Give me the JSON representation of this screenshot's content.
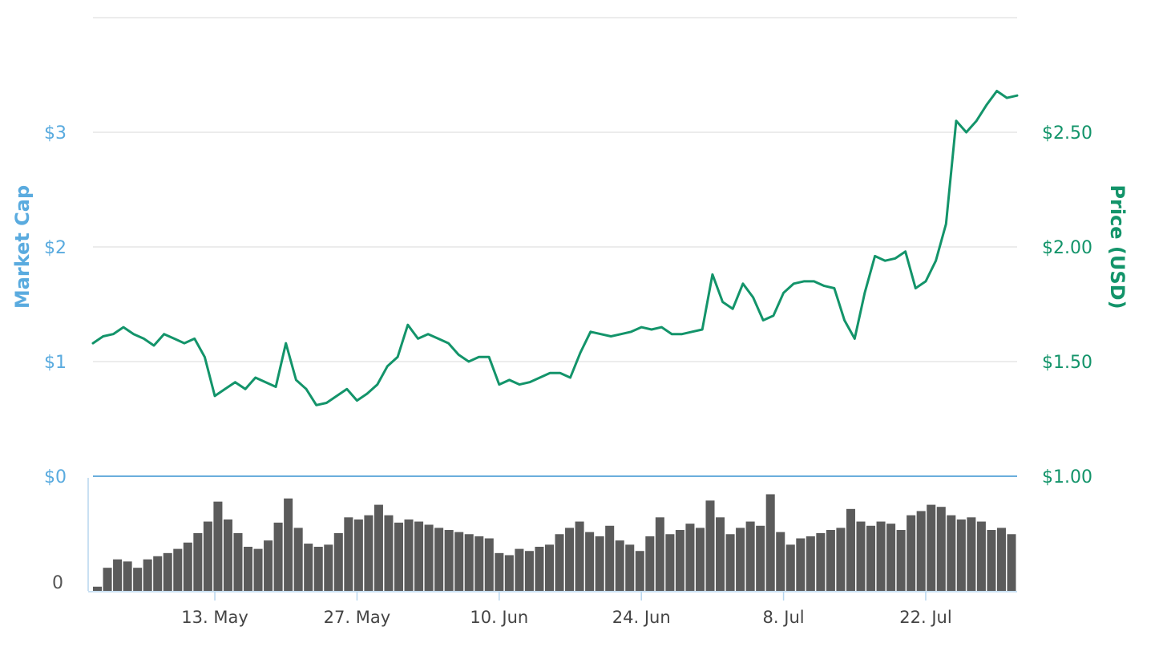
{
  "chart_data": [
    {
      "type": "line",
      "panel": "price",
      "title": "",
      "xlabel": "",
      "y_left_label": "Market Cap",
      "y_right_label": "Price (USD)",
      "y_left_ticks": [
        "$0",
        "$1",
        "$2",
        "$3"
      ],
      "y_right_ticks": [
        "$1.00",
        "$1.50",
        "$2.00",
        "$2.50"
      ],
      "ylim_right": [
        1.0,
        3.0
      ],
      "x_tick_labels": [
        "13. May",
        "27. May",
        "10. Jun",
        "24. Jun",
        "8. Jul",
        "22. Jul"
      ],
      "x_tick_dates": [
        "2019-05-13",
        "2019-05-27",
        "2019-06-10",
        "2019-06-24",
        "2019-07-08",
        "2019-07-22"
      ],
      "xlim": [
        "2019-05-01",
        "2019-07-31"
      ],
      "grid": true,
      "colors": {
        "price_line": "#13946a",
        "left_axis": "#5aabdf",
        "right_axis": "#13946a",
        "grid": "#e6e6e6",
        "axis_line": "#6aaedc"
      },
      "series": [
        {
          "name": "Price (USD)",
          "points": [
            [
              "2019-05-01",
              1.58
            ],
            [
              "2019-05-02",
              1.61
            ],
            [
              "2019-05-03",
              1.62
            ],
            [
              "2019-05-04",
              1.65
            ],
            [
              "2019-05-05",
              1.62
            ],
            [
              "2019-05-06",
              1.6
            ],
            [
              "2019-05-07",
              1.57
            ],
            [
              "2019-05-08",
              1.62
            ],
            [
              "2019-05-09",
              1.6
            ],
            [
              "2019-05-10",
              1.58
            ],
            [
              "2019-05-11",
              1.6
            ],
            [
              "2019-05-12",
              1.52
            ],
            [
              "2019-05-13",
              1.35
            ],
            [
              "2019-05-14",
              1.38
            ],
            [
              "2019-05-15",
              1.41
            ],
            [
              "2019-05-16",
              1.38
            ],
            [
              "2019-05-17",
              1.43
            ],
            [
              "2019-05-18",
              1.41
            ],
            [
              "2019-05-19",
              1.39
            ],
            [
              "2019-05-20",
              1.58
            ],
            [
              "2019-05-21",
              1.42
            ],
            [
              "2019-05-22",
              1.38
            ],
            [
              "2019-05-23",
              1.31
            ],
            [
              "2019-05-24",
              1.32
            ],
            [
              "2019-05-25",
              1.35
            ],
            [
              "2019-05-26",
              1.38
            ],
            [
              "2019-05-27",
              1.33
            ],
            [
              "2019-05-28",
              1.36
            ],
            [
              "2019-05-29",
              1.4
            ],
            [
              "2019-05-30",
              1.48
            ],
            [
              "2019-05-31",
              1.52
            ],
            [
              "2019-06-01",
              1.66
            ],
            [
              "2019-06-02",
              1.6
            ],
            [
              "2019-06-03",
              1.62
            ],
            [
              "2019-06-04",
              1.6
            ],
            [
              "2019-06-05",
              1.58
            ],
            [
              "2019-06-06",
              1.53
            ],
            [
              "2019-06-07",
              1.5
            ],
            [
              "2019-06-08",
              1.52
            ],
            [
              "2019-06-09",
              1.52
            ],
            [
              "2019-06-10",
              1.4
            ],
            [
              "2019-06-11",
              1.42
            ],
            [
              "2019-06-12",
              1.4
            ],
            [
              "2019-06-13",
              1.41
            ],
            [
              "2019-06-14",
              1.43
            ],
            [
              "2019-06-15",
              1.45
            ],
            [
              "2019-06-16",
              1.45
            ],
            [
              "2019-06-17",
              1.43
            ],
            [
              "2019-06-18",
              1.54
            ],
            [
              "2019-06-19",
              1.63
            ],
            [
              "2019-06-20",
              1.62
            ],
            [
              "2019-06-21",
              1.61
            ],
            [
              "2019-06-22",
              1.62
            ],
            [
              "2019-06-23",
              1.63
            ],
            [
              "2019-06-24",
              1.65
            ],
            [
              "2019-06-25",
              1.64
            ],
            [
              "2019-06-26",
              1.65
            ],
            [
              "2019-06-27",
              1.62
            ],
            [
              "2019-06-28",
              1.62
            ],
            [
              "2019-06-29",
              1.63
            ],
            [
              "2019-06-30",
              1.64
            ],
            [
              "2019-07-01",
              1.88
            ],
            [
              "2019-07-02",
              1.76
            ],
            [
              "2019-07-03",
              1.73
            ],
            [
              "2019-07-04",
              1.84
            ],
            [
              "2019-07-05",
              1.78
            ],
            [
              "2019-07-06",
              1.68
            ],
            [
              "2019-07-07",
              1.7
            ],
            [
              "2019-07-08",
              1.8
            ],
            [
              "2019-07-09",
              1.84
            ],
            [
              "2019-07-10",
              1.85
            ],
            [
              "2019-07-11",
              1.85
            ],
            [
              "2019-07-12",
              1.83
            ],
            [
              "2019-07-13",
              1.82
            ],
            [
              "2019-07-14",
              1.68
            ],
            [
              "2019-07-15",
              1.6
            ],
            [
              "2019-07-16",
              1.8
            ],
            [
              "2019-07-17",
              1.96
            ],
            [
              "2019-07-18",
              1.94
            ],
            [
              "2019-07-19",
              1.95
            ],
            [
              "2019-07-20",
              1.98
            ],
            [
              "2019-07-21",
              1.82
            ],
            [
              "2019-07-22",
              1.85
            ],
            [
              "2019-07-23",
              1.94
            ],
            [
              "2019-07-24",
              2.1
            ],
            [
              "2019-07-25",
              2.55
            ],
            [
              "2019-07-26",
              2.5
            ],
            [
              "2019-07-27",
              2.55
            ],
            [
              "2019-07-28",
              2.62
            ],
            [
              "2019-07-29",
              2.68
            ],
            [
              "2019-07-30",
              2.65
            ],
            [
              "2019-07-31",
              2.66
            ]
          ]
        }
      ]
    },
    {
      "type": "bar",
      "panel": "volume",
      "ylabel": "",
      "y_ticks": [
        "0"
      ],
      "x_tick_labels": [
        "13. May",
        "27. May",
        "10. Jun",
        "24. Jun",
        "8. Jul",
        "22. Jul"
      ],
      "xlim": [
        "2019-05-01",
        "2019-07-31"
      ],
      "colors": {
        "bars": "#5b5b5b",
        "axis_line": "#b7d6ee"
      },
      "series": [
        {
          "values": [
            0.04,
            0.22,
            0.3,
            0.28,
            0.22,
            0.3,
            0.33,
            0.36,
            0.4,
            0.46,
            0.55,
            0.66,
            0.85,
            0.68,
            0.55,
            0.42,
            0.4,
            0.48,
            0.65,
            0.88,
            0.6,
            0.45,
            0.42,
            0.44,
            0.55,
            0.7,
            0.68,
            0.72,
            0.82,
            0.72,
            0.65,
            0.68,
            0.66,
            0.63,
            0.6,
            0.58,
            0.56,
            0.54,
            0.52,
            0.5,
            0.36,
            0.34,
            0.4,
            0.38,
            0.42,
            0.44,
            0.54,
            0.6,
            0.66,
            0.56,
            0.52,
            0.62,
            0.48,
            0.44,
            0.38,
            0.52,
            0.7,
            0.54,
            0.58,
            0.64,
            0.6,
            0.86,
            0.7,
            0.54,
            0.6,
            0.66,
            0.62,
            0.92,
            0.56,
            0.44,
            0.5,
            0.52,
            0.55,
            0.58,
            0.6,
            0.78,
            0.66,
            0.62,
            0.66,
            0.64,
            0.58,
            0.72,
            0.76,
            0.82,
            0.8,
            0.72,
            0.68,
            0.7,
            0.66,
            0.58,
            0.6,
            0.54
          ]
        }
      ]
    }
  ]
}
